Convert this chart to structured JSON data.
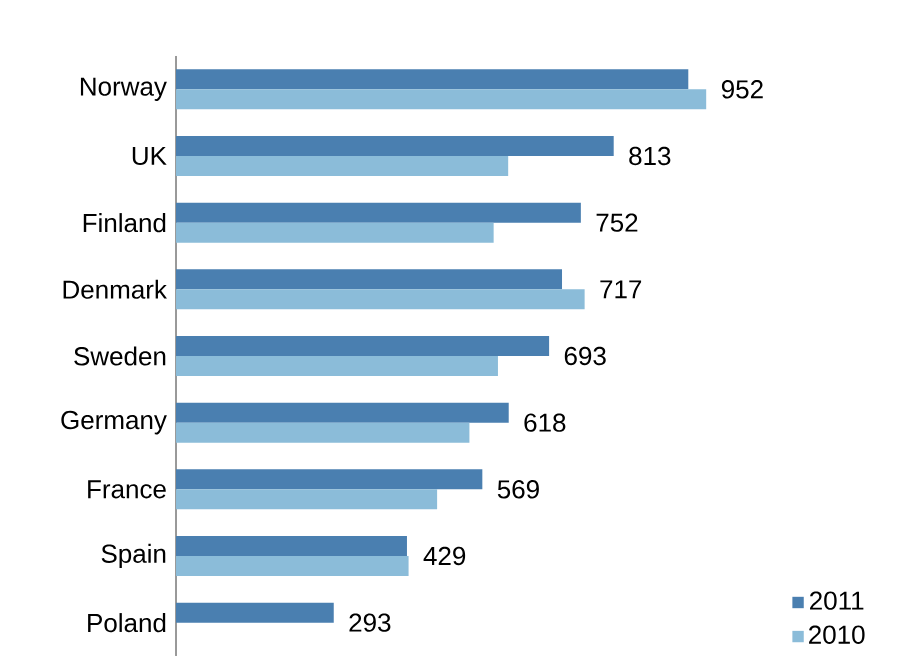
{
  "chart_data": {
    "type": "bar",
    "orientation": "horizontal",
    "categories": [
      "Norway",
      "UK",
      "Finland",
      "Denmark",
      "Sweden",
      "Germany",
      "France",
      "Spain",
      "Poland"
    ],
    "series": [
      {
        "name": "2011",
        "color": "#4a7fb0",
        "values": [
          952,
          813,
          752,
          717,
          693,
          618,
          569,
          429,
          293
        ],
        "value_labels": [
          "952",
          "813",
          "752",
          "717",
          "693",
          "618",
          "569",
          "429",
          "293"
        ]
      },
      {
        "name": "2010",
        "color": "#8bbcd9",
        "values": [
          985,
          617,
          590,
          759,
          598,
          545,
          485,
          432,
          null
        ]
      }
    ],
    "legend": "bottom right"
  }
}
